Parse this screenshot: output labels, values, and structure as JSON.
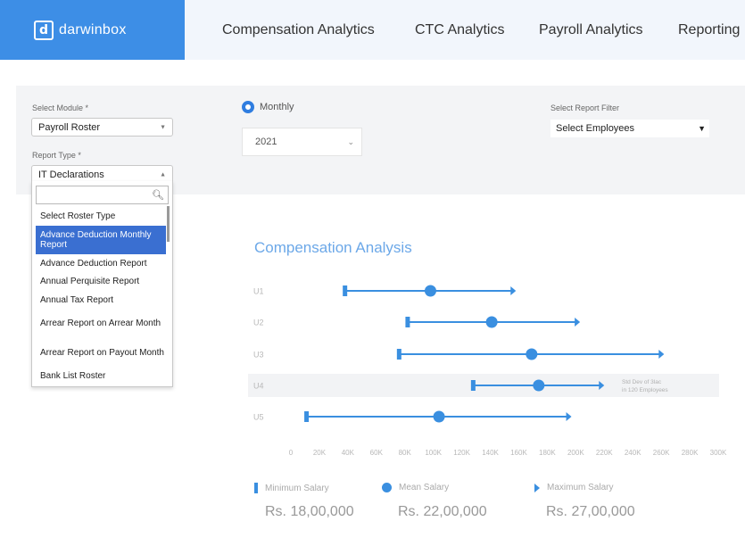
{
  "header": {
    "logo_text": "darwinbox",
    "logo_mark": "d",
    "nav": [
      {
        "label": "Compensation Analytics"
      },
      {
        "label": "CTC Analytics"
      },
      {
        "label": "Payroll Analytics"
      },
      {
        "label": "Reporting"
      }
    ]
  },
  "filters": {
    "module_label": "Select Module *",
    "module_value": "Payroll Roster",
    "report_type_label": "Report Type *",
    "report_type_value": "IT Declarations",
    "period_option": "Monthly",
    "year_value": "2021",
    "report_filter_label": "Select Report Filter",
    "report_filter_value": "Select Employees"
  },
  "dropdown": {
    "search_value": "",
    "items": [
      {
        "label": "Select Roster Type",
        "selected": false
      },
      {
        "label": "Advance Deduction Monthly Report",
        "selected": true
      },
      {
        "label": "Advance Deduction Report",
        "selected": false
      },
      {
        "label": "Annual Perquisite Report",
        "selected": false
      },
      {
        "label": "Annual Tax Report",
        "selected": false
      },
      {
        "label": "Arrear Report on Arrear Month",
        "selected": false
      },
      {
        "label": "Arrear Report on Payout Month",
        "selected": false
      },
      {
        "label": "Bank List Roster",
        "selected": false
      }
    ]
  },
  "colors": {
    "brand": "#3d8ee6",
    "series": "#3a8fe0",
    "title": "#6ca8e8",
    "highlight_row": "#f2f3f5"
  },
  "chart_data": {
    "type": "range-dot",
    "title": "Compensation Analysis",
    "x_ticks": [
      "0",
      "20K",
      "40K",
      "60K",
      "80K",
      "100K",
      "120K",
      "140K",
      "160K",
      "180K",
      "200K",
      "220K",
      "240K",
      "260K",
      "280K",
      "300K"
    ],
    "xlim": [
      0,
      300000
    ],
    "rows": [
      {
        "label": "U1",
        "min": 38000,
        "mean": 98000,
        "max": 158000,
        "highlight": false
      },
      {
        "label": "U2",
        "min": 82000,
        "mean": 141000,
        "max": 203000,
        "highlight": false
      },
      {
        "label": "U3",
        "min": 76000,
        "mean": 169000,
        "max": 262000,
        "highlight": false
      },
      {
        "label": "U4",
        "min": 128000,
        "mean": 174000,
        "max": 220000,
        "highlight": true,
        "annotation_line1": "Std Dev of 3lac",
        "annotation_line2": "in 120 Employees"
      },
      {
        "label": "U5",
        "min": 11000,
        "mean": 104000,
        "max": 197000,
        "highlight": false
      }
    ],
    "legend": [
      {
        "name": "Minimum Salary",
        "value": "Rs. 18,00,000",
        "icon": "bar-marker-icon"
      },
      {
        "name": "Mean Salary",
        "value": "Rs. 22,00,000",
        "icon": "dot-marker-icon"
      },
      {
        "name": "Maximum Salary",
        "value": "Rs. 27,00,000",
        "icon": "arrow-marker-icon"
      }
    ]
  }
}
